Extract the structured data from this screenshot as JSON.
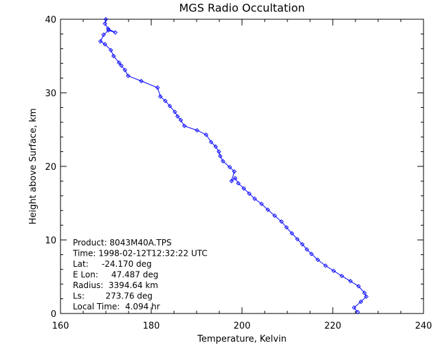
{
  "chart_data": {
    "type": "line",
    "title": "MGS Radio Occultation",
    "xlabel": "Temperature, Kelvin",
    "ylabel": "Height above Surface, km",
    "xlim": [
      160,
      240
    ],
    "ylim": [
      0,
      40
    ],
    "xticks": [
      "160",
      "180",
      "200",
      "220",
      "240"
    ],
    "yticks": [
      "0",
      "10",
      "20",
      "30",
      "40"
    ],
    "line_color": "#0000ff",
    "marker": "diamond",
    "grid": false,
    "series": [
      {
        "x": [
          225.5,
          224.7,
          226.2,
          227.4,
          227.0,
          225.7,
          223.9,
          222.0,
          220.2,
          218.4,
          216.7,
          215.3,
          214.3,
          213.3,
          212.2,
          211.0,
          209.8,
          208.7,
          207.2,
          205.7,
          204.3,
          202.8,
          201.6,
          200.4,
          199.2,
          198.5,
          197.7,
          198.3,
          197.3,
          195.8,
          195.2,
          194.9,
          194.2,
          193.2,
          192.1,
          190.1,
          187.3,
          186.5,
          185.8,
          185.2,
          184.1,
          183.1,
          182.0,
          181.4,
          177.8,
          174.9,
          174.2,
          173.4,
          172.9,
          171.7,
          171.1,
          169.8,
          168.8,
          169.5,
          170.6,
          172.1,
          170.5,
          169.8,
          170.0
        ],
        "y": [
          0.2,
          0.8,
          1.6,
          2.3,
          2.8,
          3.7,
          4.4,
          5.1,
          5.8,
          6.5,
          7.3,
          8.1,
          8.7,
          9.4,
          10.1,
          10.9,
          11.7,
          12.5,
          13.3,
          14.1,
          14.9,
          15.6,
          16.3,
          17.0,
          17.7,
          18.4,
          18.0,
          19.3,
          19.9,
          20.7,
          21.4,
          22.0,
          22.7,
          23.3,
          24.3,
          24.9,
          25.5,
          26.3,
          26.8,
          27.4,
          28.2,
          28.9,
          29.5,
          30.7,
          31.6,
          32.3,
          33.1,
          33.7,
          34.1,
          35.0,
          35.8,
          36.6,
          37.0,
          37.9,
          38.5,
          38.2,
          38.7,
          39.4,
          40.0
        ]
      }
    ],
    "info": [
      "Product: 8043M40A.TPS",
      "Time: 1998-02-12T12:32:22 UTC",
      "Lat:     -24.170 deg",
      "E Lon:     47.487 deg",
      "Radius:  3394.64 km",
      "Ls:        273.76 deg",
      "Local Time:  4.094 hr"
    ]
  }
}
